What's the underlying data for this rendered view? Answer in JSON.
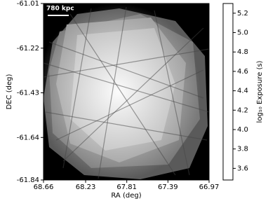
{
  "chart_data": {
    "type": "image",
    "scale_bar_label": "780 kpc",
    "xlabel": "RA (deg)",
    "ylabel": "DEC (deg)",
    "xlim": [
      68.66,
      66.97
    ],
    "xticks": [
      68.66,
      68.23,
      67.81,
      67.39,
      66.97
    ],
    "ylim": [
      -61.84,
      -61.01
    ],
    "yticks": [
      -61.84,
      -61.64,
      -61.43,
      -61.22,
      -61.01
    ],
    "colormap": "gray",
    "colorbar_label": "log₁₀ Exposure (s)",
    "clim": [
      3.48,
      5.3
    ],
    "cticks": [
      3.6,
      3.8,
      {
        "value": 4,
        "label": "4.0"
      },
      4.2,
      4.4,
      4.6,
      4.8,
      {
        "value": 5,
        "label": "5.0"
      },
      5.2
    ]
  }
}
